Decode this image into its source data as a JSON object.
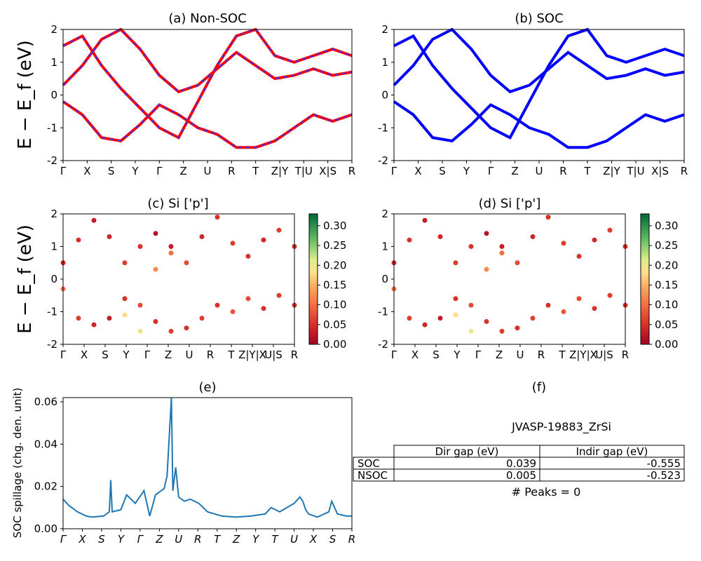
{
  "figure_id": "JVASP-19883_ZrSi",
  "band_ylabel": "E − E_f (eV)",
  "colors": {
    "non_soc_solid": "#ff0000",
    "non_soc_dash": "#3333ff",
    "soc": "#0000ff",
    "spillage_line": "#1f77b4"
  },
  "chart_data": [
    {
      "panel": "a",
      "type": "line",
      "title": "(a) Non-SOC",
      "ylabel": "E − E_f (eV)",
      "ylim": [
        -2,
        2
      ],
      "yticks": [
        -2,
        -1,
        0,
        1,
        2
      ],
      "kpoint_labels": [
        "Γ",
        "X",
        "S",
        "Y",
        "Γ",
        "Z",
        "U",
        "R",
        "T",
        "Z|Y",
        "T|U",
        "X|S",
        "R"
      ],
      "line_style": "red solid with blue dashed overlay (SOC)",
      "series": [
        {
          "x": [
            0,
            0.05,
            0.1,
            0.15,
            0.2,
            0.25,
            0.3,
            0.35,
            0.4,
            0.45,
            0.5,
            0.55,
            0.6,
            0.65,
            0.7,
            0.75
          ],
          "values": [
            0.3,
            0.9,
            1.7,
            2.0,
            1.4,
            0.6,
            0.1,
            0.3,
            0.8,
            1.3,
            0.9,
            0.5,
            0.6,
            0.8,
            0.6,
            0.7
          ]
        },
        {
          "x": [
            0,
            0.05,
            0.1,
            0.15,
            0.2,
            0.25,
            0.3,
            0.35,
            0.4,
            0.45,
            0.5,
            0.55,
            0.6,
            0.65,
            0.7,
            0.75
          ],
          "values": [
            -0.2,
            -0.6,
            -1.3,
            -1.4,
            -0.9,
            -0.3,
            -0.6,
            -1.0,
            -1.2,
            -1.6,
            -1.6,
            -1.4,
            -1.0,
            -0.6,
            -0.8,
            -0.6
          ]
        },
        {
          "x": [
            0,
            0.05,
            0.1,
            0.15,
            0.2,
            0.25,
            0.3,
            0.35,
            0.4,
            0.45,
            0.5,
            0.55,
            0.6,
            0.65,
            0.7,
            0.75
          ],
          "values": [
            1.5,
            1.8,
            0.9,
            0.2,
            -0.4,
            -1.0,
            -1.3,
            -0.2,
            0.9,
            1.8,
            2.0,
            1.2,
            1.0,
            1.2,
            1.4,
            1.2
          ]
        }
      ]
    },
    {
      "panel": "b",
      "type": "line",
      "title": "(b) SOC",
      "ylim": [
        -2,
        2
      ],
      "yticks": [
        -2,
        -1,
        0,
        1,
        2
      ],
      "kpoint_labels": [
        "Γ",
        "X",
        "S",
        "Y",
        "Γ",
        "Z",
        "U",
        "R",
        "T",
        "Z|Y",
        "T|U",
        "X|S",
        "R"
      ],
      "line_style": "blue solid",
      "series": [
        {
          "x": [
            0,
            0.05,
            0.1,
            0.15,
            0.2,
            0.25,
            0.3,
            0.35,
            0.4,
            0.45,
            0.5,
            0.55,
            0.6,
            0.65,
            0.7,
            0.75
          ],
          "values": [
            0.3,
            0.9,
            1.7,
            2.0,
            1.4,
            0.6,
            0.1,
            0.3,
            0.8,
            1.3,
            0.9,
            0.5,
            0.6,
            0.8,
            0.6,
            0.7
          ]
        },
        {
          "x": [
            0,
            0.05,
            0.1,
            0.15,
            0.2,
            0.25,
            0.3,
            0.35,
            0.4,
            0.45,
            0.5,
            0.55,
            0.6,
            0.65,
            0.7,
            0.75
          ],
          "values": [
            -0.2,
            -0.6,
            -1.3,
            -1.4,
            -0.9,
            -0.3,
            -0.6,
            -1.0,
            -1.2,
            -1.6,
            -1.6,
            -1.4,
            -1.0,
            -0.6,
            -0.8,
            -0.6
          ]
        },
        {
          "x": [
            0,
            0.05,
            0.1,
            0.15,
            0.2,
            0.25,
            0.3,
            0.35,
            0.4,
            0.45,
            0.5,
            0.55,
            0.6,
            0.65,
            0.7,
            0.75
          ],
          "values": [
            1.5,
            1.8,
            0.9,
            0.2,
            -0.4,
            -1.0,
            -1.3,
            -0.2,
            0.9,
            1.8,
            2.0,
            1.2,
            1.0,
            1.2,
            1.4,
            1.2
          ]
        }
      ]
    },
    {
      "panel": "c",
      "type": "scatter",
      "title": "(c)  Si ['p']",
      "ylabel": "E − E_f (eV)",
      "ylim": [
        -2,
        2
      ],
      "yticks": [
        -2,
        -1,
        0,
        1,
        2
      ],
      "kpoint_labels": [
        "Γ",
        "X",
        "S",
        "Y",
        "Γ",
        "Z",
        "U",
        "R",
        "T",
        "Z|Y|X",
        "U|S",
        "R"
      ],
      "colorbar": {
        "cmap": "RdYlGn",
        "range": [
          0,
          0.33
        ],
        "ticks": [
          "0.00",
          "0.05",
          "0.10",
          "0.15",
          "0.20",
          "0.25",
          "0.30"
        ]
      },
      "points": [
        [
          0.0,
          -0.3,
          0.1
        ],
        [
          0.05,
          -1.2,
          0.06
        ],
        [
          0.1,
          -1.4,
          0.04
        ],
        [
          0.15,
          -1.2,
          0.03
        ],
        [
          0.2,
          -0.6,
          0.05
        ],
        [
          0.25,
          -0.8,
          0.07
        ],
        [
          0.3,
          -1.3,
          0.05
        ],
        [
          0.35,
          -1.6,
          0.06
        ],
        [
          0.4,
          -1.5,
          0.05
        ],
        [
          0.45,
          -1.2,
          0.06
        ],
        [
          0.5,
          -0.8,
          0.05
        ],
        [
          0.55,
          -1.0,
          0.08
        ],
        [
          0.6,
          -0.6,
          0.07
        ],
        [
          0.65,
          -0.9,
          0.05
        ],
        [
          0.7,
          -0.5,
          0.06
        ],
        [
          0.75,
          -0.8,
          0.05
        ],
        [
          0.0,
          0.5,
          0.04
        ],
        [
          0.05,
          1.2,
          0.05
        ],
        [
          0.1,
          1.8,
          0.03
        ],
        [
          0.15,
          1.3,
          0.04
        ],
        [
          0.2,
          0.5,
          0.06
        ],
        [
          0.25,
          1.0,
          0.05
        ],
        [
          0.3,
          1.4,
          0.02
        ],
        [
          0.35,
          1.0,
          0.03
        ],
        [
          0.4,
          0.5,
          0.07
        ],
        [
          0.45,
          1.3,
          0.04
        ],
        [
          0.5,
          1.9,
          0.05
        ],
        [
          0.55,
          1.1,
          0.06
        ],
        [
          0.6,
          0.7,
          0.05
        ],
        [
          0.65,
          1.2,
          0.04
        ],
        [
          0.7,
          1.5,
          0.06
        ],
        [
          0.75,
          1.0,
          0.05
        ],
        [
          0.2,
          -1.1,
          0.18
        ],
        [
          0.25,
          -1.6,
          0.2
        ],
        [
          0.3,
          0.3,
          0.12
        ],
        [
          0.35,
          0.8,
          0.1
        ]
      ]
    },
    {
      "panel": "d",
      "type": "scatter",
      "title": "(d) Si ['p']",
      "ylim": [
        -2,
        2
      ],
      "yticks": [
        -2,
        -1,
        0,
        1,
        2
      ],
      "kpoint_labels": [
        "Γ",
        "X",
        "S",
        "Y",
        "Γ",
        "Z",
        "U",
        "R",
        "T",
        "Z|Y|X",
        "U|S",
        "R"
      ],
      "colorbar": {
        "cmap": "RdYlGn",
        "range": [
          0,
          0.33
        ],
        "ticks": [
          "0.00",
          "0.05",
          "0.10",
          "0.15",
          "0.20",
          "0.25",
          "0.30"
        ]
      },
      "points": [
        [
          0.0,
          -0.3,
          0.1
        ],
        [
          0.05,
          -1.2,
          0.06
        ],
        [
          0.1,
          -1.4,
          0.04
        ],
        [
          0.15,
          -1.2,
          0.03
        ],
        [
          0.2,
          -0.6,
          0.05
        ],
        [
          0.25,
          -0.8,
          0.07
        ],
        [
          0.3,
          -1.3,
          0.05
        ],
        [
          0.35,
          -1.6,
          0.06
        ],
        [
          0.4,
          -1.5,
          0.05
        ],
        [
          0.45,
          -1.2,
          0.06
        ],
        [
          0.5,
          -0.8,
          0.05
        ],
        [
          0.55,
          -1.0,
          0.08
        ],
        [
          0.6,
          -0.6,
          0.07
        ],
        [
          0.65,
          -0.9,
          0.05
        ],
        [
          0.7,
          -0.5,
          0.06
        ],
        [
          0.75,
          -0.8,
          0.05
        ],
        [
          0.0,
          0.5,
          0.04
        ],
        [
          0.05,
          1.2,
          0.05
        ],
        [
          0.1,
          1.8,
          0.03
        ],
        [
          0.15,
          1.3,
          0.04
        ],
        [
          0.2,
          0.5,
          0.06
        ],
        [
          0.25,
          1.0,
          0.05
        ],
        [
          0.3,
          1.4,
          0.02
        ],
        [
          0.35,
          1.0,
          0.03
        ],
        [
          0.4,
          0.5,
          0.07
        ],
        [
          0.45,
          1.3,
          0.04
        ],
        [
          0.5,
          1.9,
          0.05
        ],
        [
          0.55,
          1.1,
          0.06
        ],
        [
          0.6,
          0.7,
          0.05
        ],
        [
          0.65,
          1.2,
          0.04
        ],
        [
          0.7,
          1.5,
          0.06
        ],
        [
          0.75,
          1.0,
          0.05
        ],
        [
          0.2,
          -1.1,
          0.18
        ],
        [
          0.25,
          -1.6,
          0.2
        ],
        [
          0.3,
          0.3,
          0.12
        ],
        [
          0.35,
          0.8,
          0.1
        ]
      ]
    },
    {
      "panel": "e",
      "type": "line",
      "title": "(e)",
      "ylabel": "SOC spillage (chg. den. unit)",
      "ylim": [
        0,
        0.062
      ],
      "yticks": [
        "0.00",
        "0.02",
        "0.04",
        "0.06"
      ],
      "kpoint_labels": [
        "Γ",
        "X",
        "S",
        "Y",
        "Γ",
        "Z",
        "U",
        "R",
        "T",
        "Z",
        "Y",
        "T",
        "U",
        "X",
        "S",
        "R"
      ],
      "x": [
        0,
        0.02,
        0.05,
        0.08,
        0.1,
        0.14,
        0.16,
        0.165,
        0.17,
        0.2,
        0.22,
        0.25,
        0.28,
        0.3,
        0.32,
        0.35,
        0.36,
        0.375,
        0.38,
        0.39,
        0.4,
        0.42,
        0.44,
        0.47,
        0.5,
        0.55,
        0.6,
        0.65,
        0.7,
        0.72,
        0.75,
        0.8,
        0.82,
        0.83,
        0.84,
        0.85,
        0.88,
        0.92,
        0.93,
        0.95,
        0.98,
        1.0
      ],
      "values": [
        0.014,
        0.011,
        0.008,
        0.006,
        0.0055,
        0.006,
        0.008,
        0.023,
        0.008,
        0.009,
        0.016,
        0.012,
        0.018,
        0.006,
        0.016,
        0.019,
        0.025,
        0.062,
        0.018,
        0.029,
        0.015,
        0.013,
        0.014,
        0.012,
        0.008,
        0.006,
        0.0055,
        0.006,
        0.007,
        0.01,
        0.008,
        0.012,
        0.015,
        0.013,
        0.009,
        0.007,
        0.0055,
        0.008,
        0.013,
        0.007,
        0.006,
        0.006
      ]
    },
    {
      "panel": "f",
      "type": "table",
      "title": "(f)",
      "caption": "JVASP-19883_ZrSi",
      "columns": [
        "",
        "Dir gap (eV)",
        "Indir gap (eV)"
      ],
      "rows": [
        [
          "SOC",
          "0.039",
          "-0.555"
        ],
        [
          "NSOC",
          "0.005",
          "-0.523"
        ]
      ],
      "footer": "# Peaks = 0"
    }
  ]
}
